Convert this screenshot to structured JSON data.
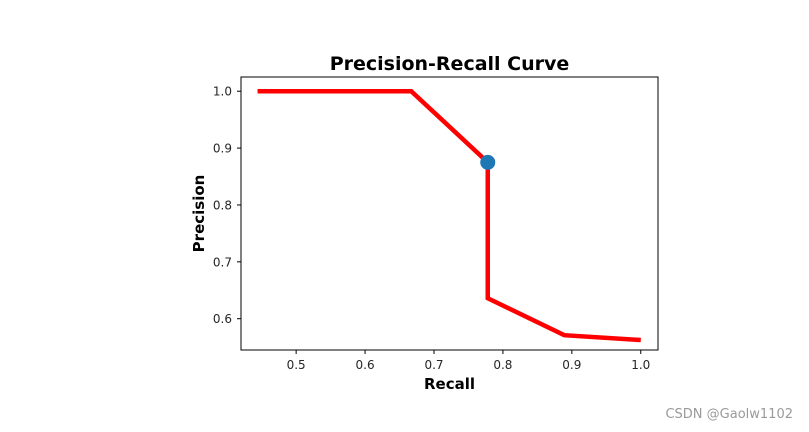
{
  "chart_data": {
    "type": "line",
    "title": "Precision-Recall Curve",
    "xlabel": "Recall",
    "ylabel": "Precision",
    "xlim": [
      0.42,
      1.025
    ],
    "ylim": [
      0.545,
      1.025
    ],
    "xticks": [
      0.5,
      0.6,
      0.7,
      0.8,
      0.9,
      1.0
    ],
    "xtick_labels": [
      "0.5",
      "0.6",
      "0.7",
      "0.8",
      "0.9",
      "1.0"
    ],
    "yticks": [
      0.6,
      0.7,
      0.8,
      0.9,
      1.0
    ],
    "ytick_labels": [
      "0.6",
      "0.7",
      "0.8",
      "0.9",
      "1.0"
    ],
    "grid": false,
    "series": [
      {
        "x": [
          0.444,
          0.667,
          0.778,
          0.778,
          0.778,
          0.889,
          1.0
        ],
        "y": [
          1.0,
          1.0,
          0.875,
          0.875,
          0.636,
          0.571,
          0.5625
        ],
        "color": "#ff0000"
      }
    ],
    "highlight_point": {
      "x": 0.778,
      "y": 0.875,
      "color": "#1f77b4"
    }
  },
  "watermark": "CSDN @Gaolw1102"
}
